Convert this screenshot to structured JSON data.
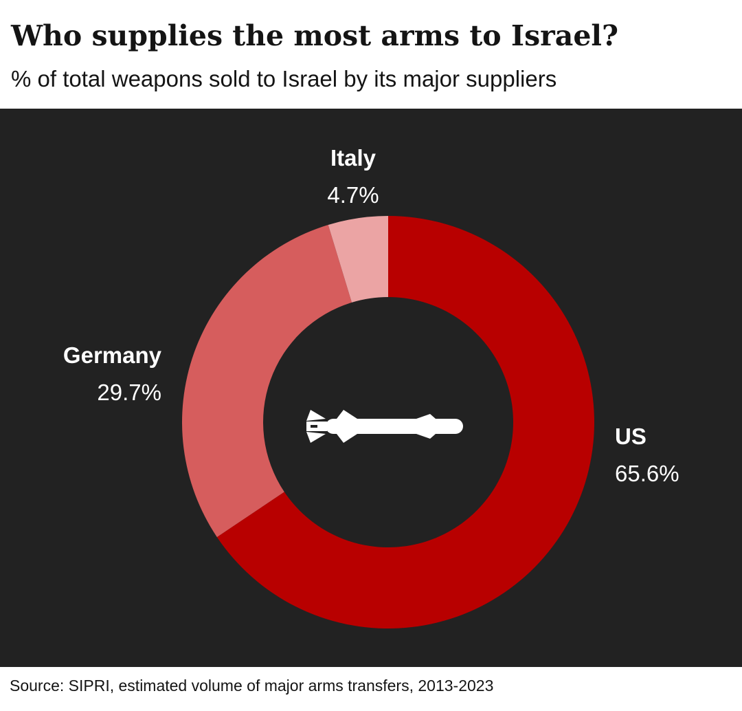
{
  "header": {
    "title": "Who supplies the most arms to Israel?",
    "subtitle": "% of total weapons sold to Israel by its major suppliers"
  },
  "footer": {
    "source": "Source: SIPRI, estimated volume of major arms transfers, 2013-2023"
  },
  "center_icon": "missile-icon",
  "colors": {
    "background": "#222222",
    "us": "#b80000",
    "germany": "#d65d5d",
    "italy": "#eba4a4",
    "label": "#ffffff",
    "icon": "#ffffff"
  },
  "chart_data": {
    "type": "pie",
    "variant": "donut",
    "title": "Who supplies the most arms to Israel?",
    "subtitle": "% of total weapons sold to Israel by its major suppliers",
    "categories": [
      "US",
      "Germany",
      "Italy"
    ],
    "values": [
      65.6,
      29.7,
      4.7
    ],
    "value_labels": [
      "65.6%",
      "29.7%",
      "4.7%"
    ],
    "unit": "%",
    "legend": "none"
  }
}
